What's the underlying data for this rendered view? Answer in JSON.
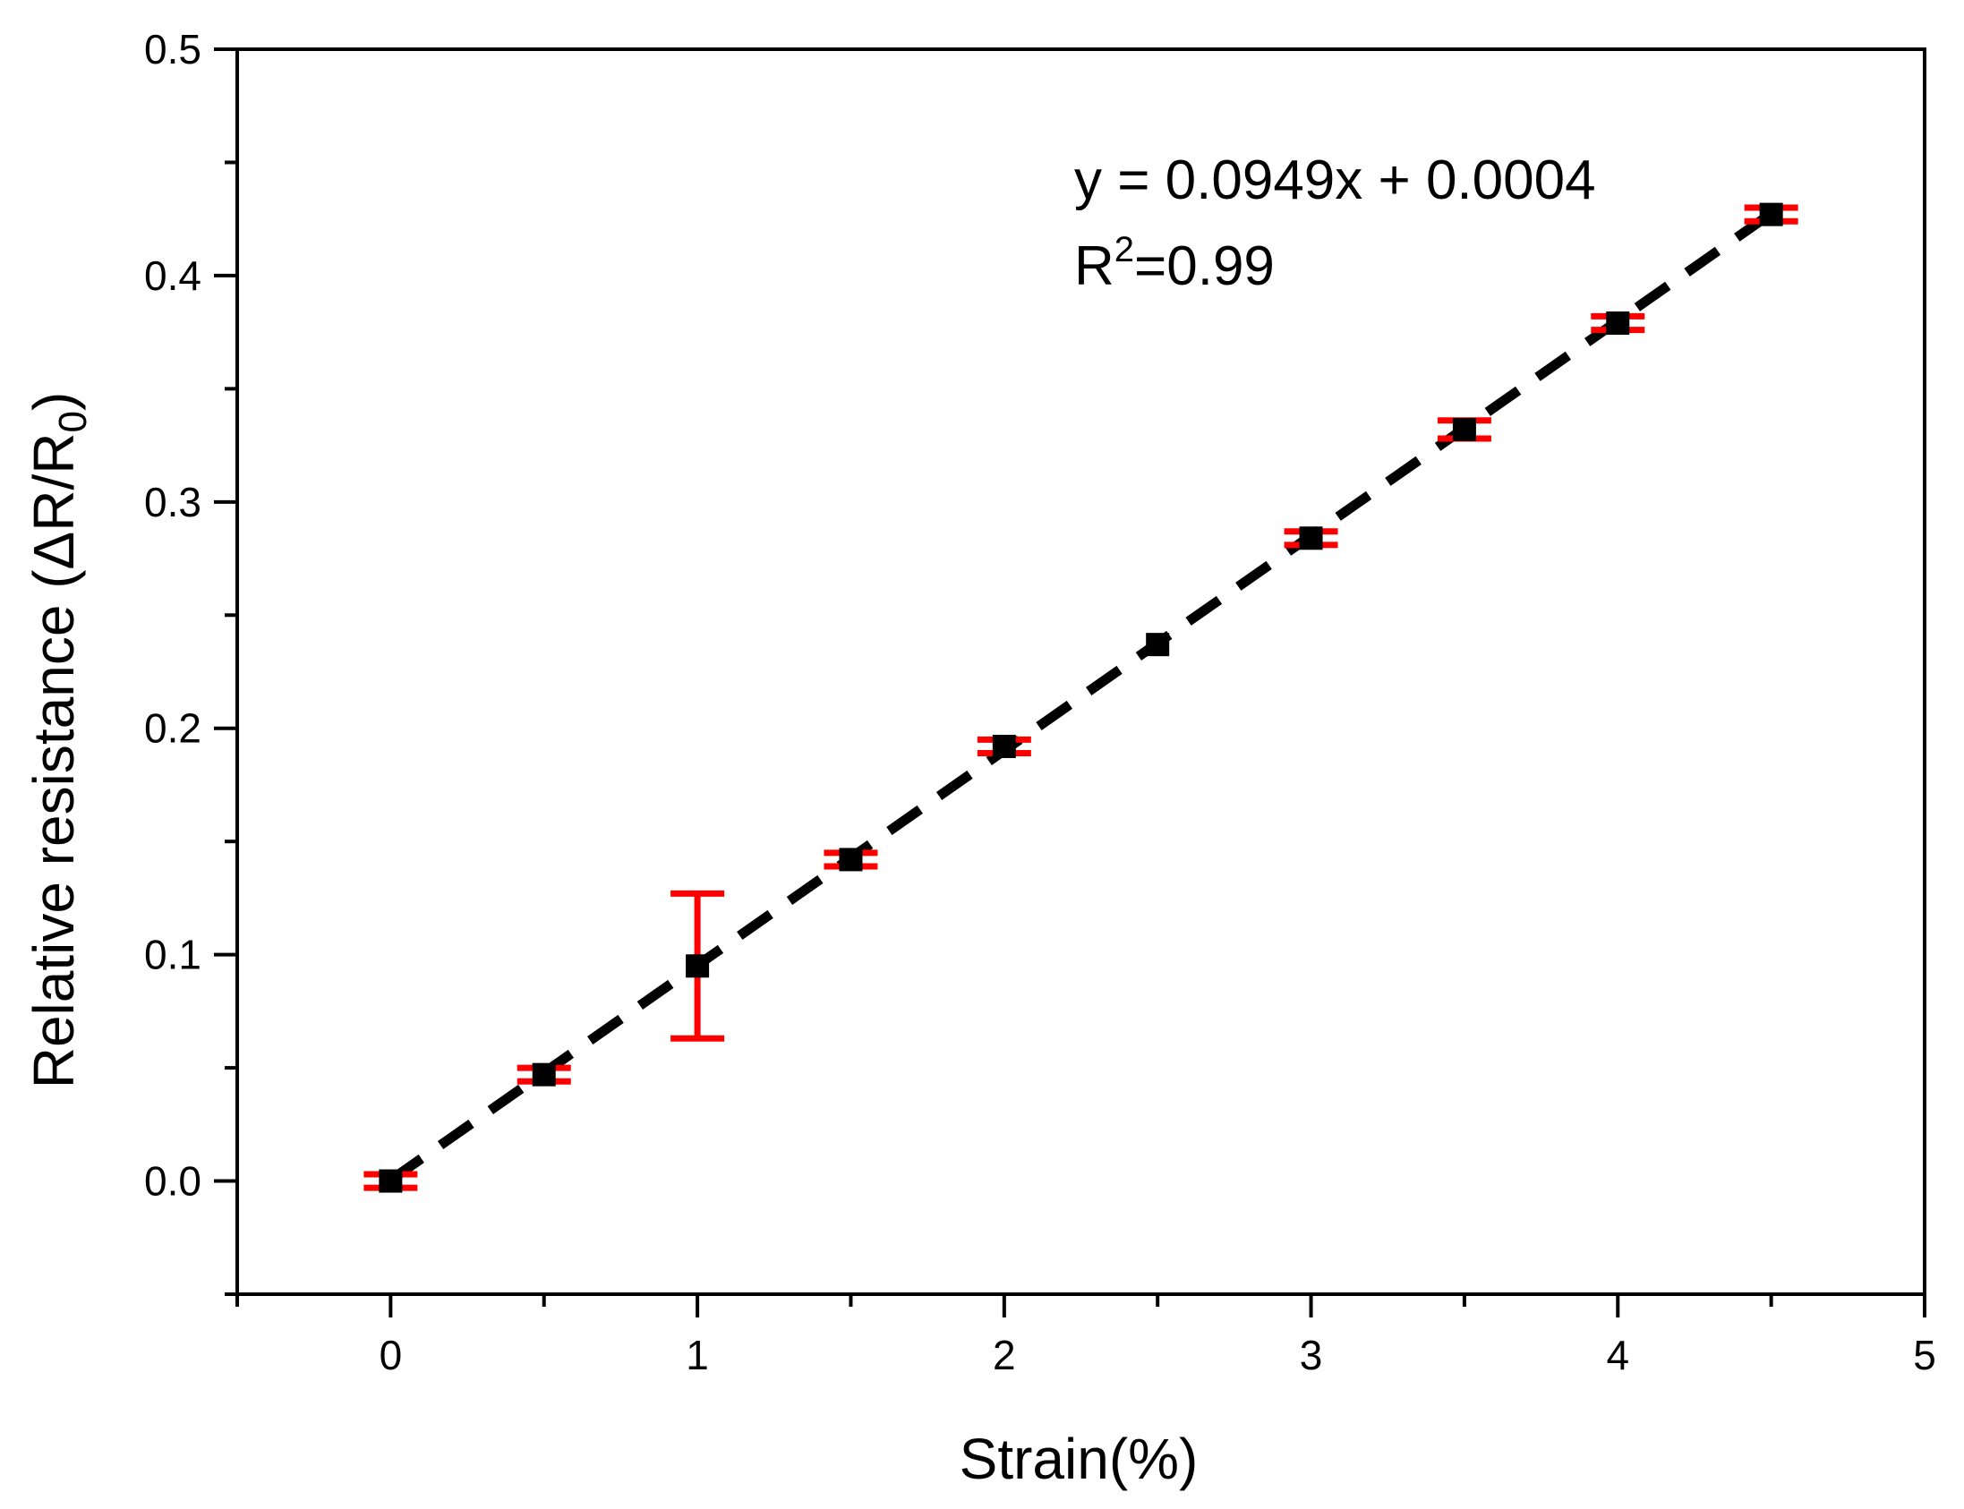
{
  "chart_data": {
    "type": "scatter",
    "xlabel": "Strain(%)",
    "ylabel": {
      "main": "Relative resistance (ΔR/R",
      "subscript": "0",
      "close": ")"
    },
    "xlim": [
      -0.5,
      5
    ],
    "ylim": [
      -0.05,
      0.5
    ],
    "x_ticks": [
      0,
      1,
      2,
      3,
      4,
      5
    ],
    "x_tick_labels": [
      "0",
      "1",
      "2",
      "3",
      "4",
      "5"
    ],
    "x_minor_ticks": [
      -0.5,
      0.5,
      1.5,
      2.5,
      3.5,
      4.5
    ],
    "y_ticks": [
      0.0,
      0.1,
      0.2,
      0.3,
      0.4,
      0.5
    ],
    "y_tick_labels": [
      "0.0",
      "0.1",
      "0.2",
      "0.3",
      "0.4",
      "0.5"
    ],
    "y_minor_ticks": [
      -0.05,
      0.05,
      0.15,
      0.25,
      0.35,
      0.45
    ],
    "grid": false,
    "series": [
      {
        "x": [
          0,
          0.5,
          1,
          1.5,
          2,
          2.5,
          3,
          3.5,
          4,
          4.5
        ],
        "y": [
          0.0,
          0.047,
          0.095,
          0.142,
          0.192,
          0.237,
          0.284,
          0.332,
          0.379,
          0.427
        ],
        "error": [
          0.003,
          0.003,
          0.032,
          0.003,
          0.003,
          0.0,
          0.003,
          0.004,
          0.003,
          0.003
        ],
        "marker_color": "#000000",
        "error_color": "#ff0000"
      }
    ],
    "fit": {
      "slope": 0.0949,
      "intercept": 0.0004,
      "x_range": [
        0,
        4.5
      ],
      "style": "dashed",
      "color": "#000000"
    },
    "annotations": {
      "equation": "y = 0.0949x + 0.0004",
      "r2_prefix": "R",
      "r2_superscript": "2",
      "r2_value": "=0.99"
    }
  }
}
